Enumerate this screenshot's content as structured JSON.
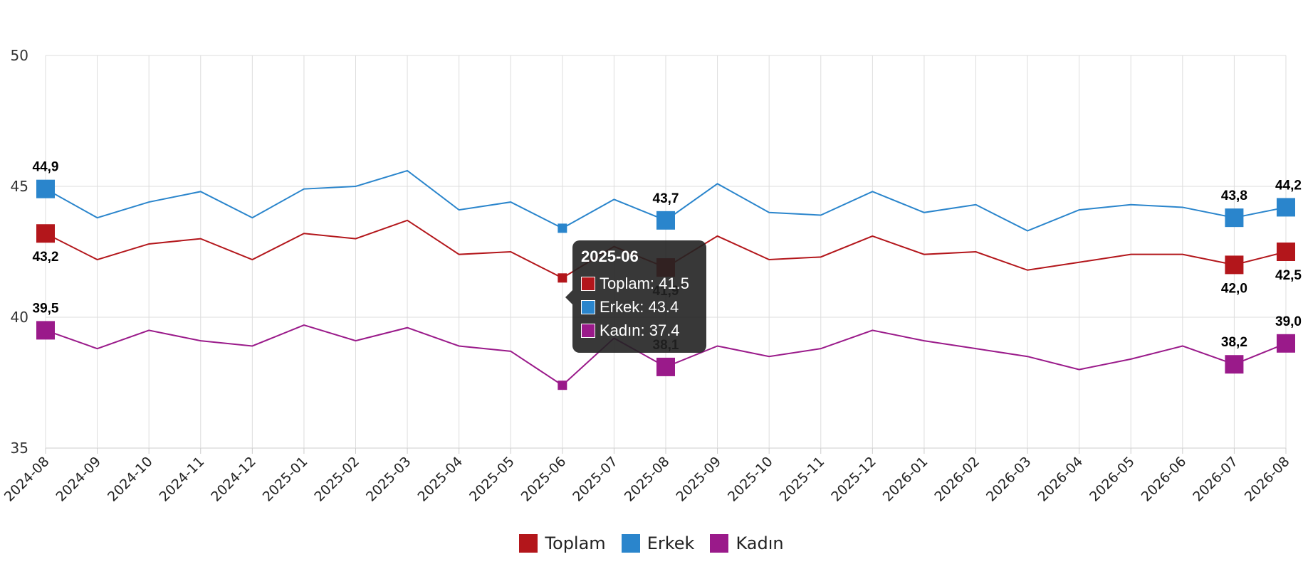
{
  "chart_data": {
    "type": "line",
    "categories": [
      "2024-08",
      "2024-09",
      "2024-10",
      "2024-11",
      "2024-12",
      "2025-01",
      "2025-02",
      "2025-03",
      "2025-04",
      "2025-05",
      "2025-06",
      "2025-07",
      "2025-08",
      "2025-09",
      "2025-10",
      "2025-11",
      "2025-12",
      "2026-01",
      "2026-02",
      "2026-03",
      "2026-04",
      "2026-05",
      "2026-06",
      "2026-07",
      "2026-08"
    ],
    "ylim": [
      35,
      50
    ],
    "yticks": [
      "35",
      "40",
      "45",
      "50"
    ],
    "grid": true,
    "legend_position": "bottom-center",
    "series": [
      {
        "name": "Toplam",
        "color": "#b3161b",
        "values": [
          43.2,
          42.2,
          42.8,
          43.0,
          42.2,
          43.2,
          43.0,
          43.7,
          42.4,
          42.5,
          41.5,
          42.7,
          41.9,
          43.1,
          42.2,
          42.3,
          43.1,
          42.4,
          42.5,
          41.8,
          42.1,
          42.4,
          42.4,
          42.0,
          42.5
        ]
      },
      {
        "name": "Erkek",
        "color": "#2a85cc",
        "values": [
          44.9,
          43.8,
          44.4,
          44.8,
          43.8,
          44.9,
          45.0,
          45.6,
          44.1,
          44.4,
          43.4,
          44.5,
          43.7,
          45.1,
          44.0,
          43.9,
          44.8,
          44.0,
          44.3,
          43.3,
          44.1,
          44.3,
          44.2,
          43.8,
          44.2
        ]
      },
      {
        "name": "Kadın",
        "color": "#9a1a8a",
        "values": [
          39.5,
          38.8,
          39.5,
          39.1,
          38.9,
          39.7,
          39.1,
          39.6,
          38.9,
          38.7,
          37.4,
          39.2,
          38.1,
          38.9,
          38.5,
          38.8,
          39.5,
          39.1,
          38.8,
          38.5,
          38.0,
          38.4,
          38.9,
          38.2,
          39.0
        ]
      }
    ],
    "data_labels": [
      {
        "series": 0,
        "index": 0,
        "text": "43,2",
        "position": "below"
      },
      {
        "series": 1,
        "index": 0,
        "text": "44,9",
        "position": "above"
      },
      {
        "series": 2,
        "index": 0,
        "text": "39,5",
        "position": "above"
      },
      {
        "series": 0,
        "index": 12,
        "text": "41,9",
        "position": "below"
      },
      {
        "series": 1,
        "index": 12,
        "text": "43,7",
        "position": "above"
      },
      {
        "series": 2,
        "index": 12,
        "text": "38,1",
        "position": "above"
      },
      {
        "series": 0,
        "index": 23,
        "text": "42,0",
        "position": "below"
      },
      {
        "series": 1,
        "index": 23,
        "text": "43,8",
        "position": "above"
      },
      {
        "series": 2,
        "index": 23,
        "text": "38,2",
        "position": "above"
      },
      {
        "series": 0,
        "index": 24,
        "text": "42,5",
        "position": "below"
      },
      {
        "series": 1,
        "index": 24,
        "text": "44,2",
        "position": "above"
      },
      {
        "series": 2,
        "index": 24,
        "text": "39,0",
        "position": "above"
      }
    ],
    "large_markers": [
      0,
      12,
      23,
      24
    ],
    "small_markers": [
      10
    ]
  },
  "tooltip": {
    "title": "2025-06",
    "rows": [
      {
        "label": "Toplam: 41.5",
        "color": "#b3161b"
      },
      {
        "label": "Erkek: 43.4",
        "color": "#2a85cc"
      },
      {
        "label": "Kadın: 37.4",
        "color": "#9a1a8a"
      }
    ]
  },
  "legend": [
    {
      "label": "Toplam",
      "color": "#b3161b"
    },
    {
      "label": "Erkek",
      "color": "#2a85cc"
    },
    {
      "label": "Kadın",
      "color": "#9a1a8a"
    }
  ]
}
